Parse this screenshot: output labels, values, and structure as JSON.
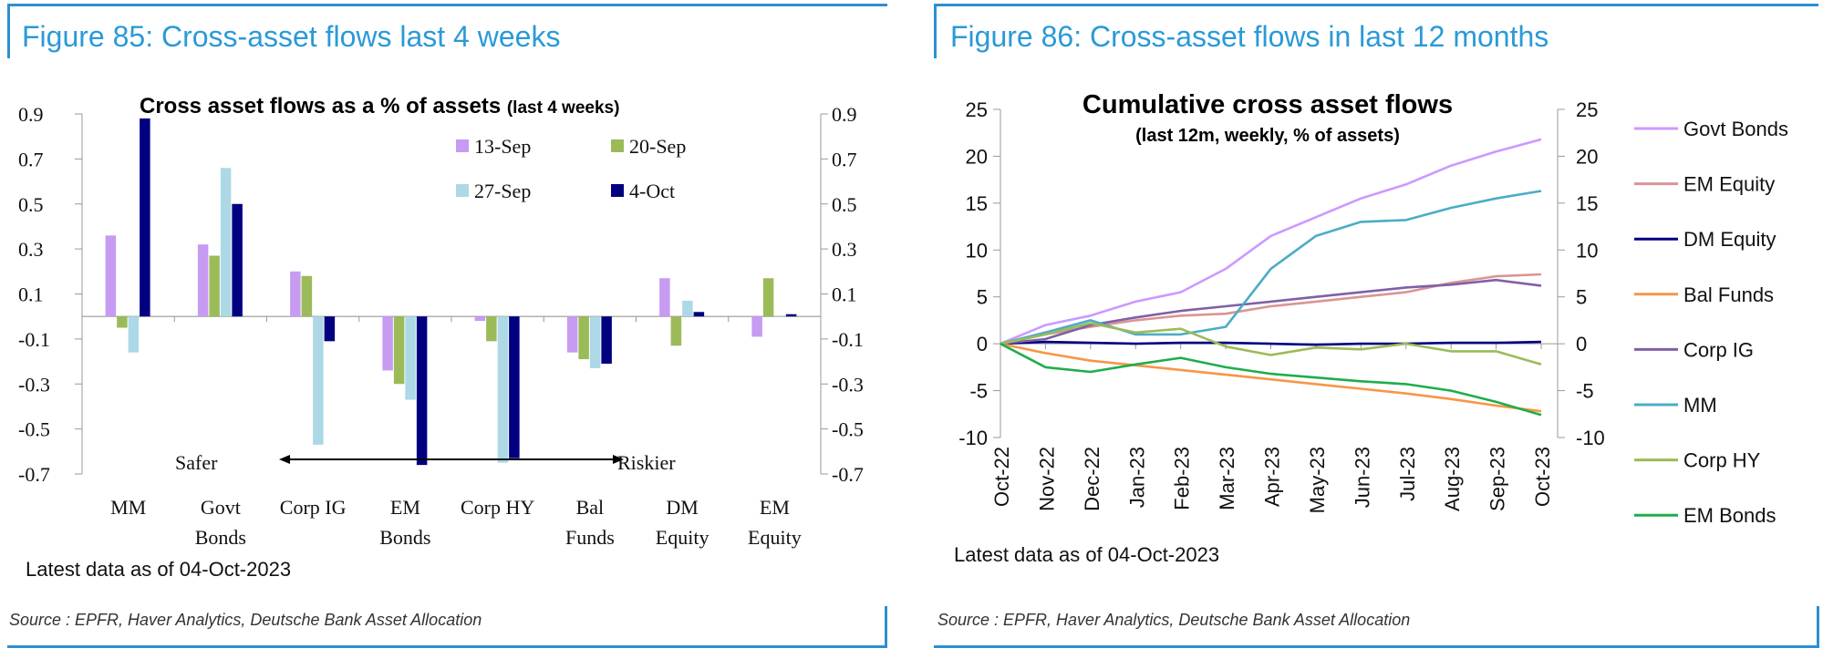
{
  "figures": [
    {
      "title": "Figure 85: Cross-asset flows last 4 weeks",
      "source": "Source : EPFR, Haver Analytics, Deutsche Bank Asset Allocation",
      "latest": "Latest data as of 04-Oct-2023",
      "safer_label": "Safer",
      "riskier_label": "Riskier"
    },
    {
      "title": "Figure 86: Cross-asset flows in last 12 months",
      "source": "Source : EPFR, Haver Analytics, Deutsche Bank Asset Allocation",
      "latest": "Latest data as of 04-Oct-2023"
    }
  ],
  "chart_data": [
    {
      "type": "bar",
      "title": "Cross asset flows as a % of assets",
      "title_suffix": "(last 4 weeks)",
      "categories": [
        [
          "MM"
        ],
        [
          "Govt",
          "Bonds"
        ],
        [
          "Corp IG"
        ],
        [
          "EM",
          "Bonds"
        ],
        [
          "Corp HY"
        ],
        [
          "Bal",
          "Funds"
        ],
        [
          "DM",
          "Equity"
        ],
        [
          "EM",
          "Equity"
        ]
      ],
      "series": [
        {
          "name": "13-Sep",
          "color": "#c79bf2",
          "values": [
            0.36,
            0.32,
            0.2,
            -0.24,
            -0.02,
            -0.16,
            0.17,
            -0.09
          ]
        },
        {
          "name": "20-Sep",
          "color": "#9bbb59",
          "values": [
            -0.05,
            0.27,
            0.18,
            -0.3,
            -0.11,
            -0.19,
            -0.13,
            0.17
          ]
        },
        {
          "name": "27-Sep",
          "color": "#add8e6",
          "values": [
            -0.16,
            0.66,
            -0.57,
            -0.37,
            -0.65,
            -0.23,
            0.07,
            0.0
          ]
        },
        {
          "name": "4-Oct",
          "color": "#000080",
          "values": [
            0.88,
            0.5,
            -0.11,
            -0.66,
            -0.63,
            -0.21,
            0.02,
            0.01
          ]
        }
      ],
      "yticks": [
        "0.9",
        "0.7",
        "0.5",
        "0.3",
        "0.1",
        "-0.1",
        "-0.3",
        "-0.5",
        "-0.7"
      ],
      "ylim": [
        -0.7,
        0.9
      ]
    },
    {
      "type": "line",
      "title": "Cumulative cross asset flows",
      "subtitle": "(last 12m, weekly, % of assets)",
      "x_labels": [
        "Oct-22",
        "Nov-22",
        "Dec-22",
        "Jan-23",
        "Feb-23",
        "Mar-23",
        "Apr-23",
        "May-23",
        "Jun-23",
        "Jul-23",
        "Aug-23",
        "Sep-23",
        "Oct-23"
      ],
      "yticks": [
        "25",
        "20",
        "15",
        "10",
        "5",
        "0",
        "-5",
        "-10"
      ],
      "ylim": [
        -10,
        25
      ],
      "series": [
        {
          "name": "Govt Bonds",
          "color": "#cc99ff",
          "values": [
            0,
            2.0,
            3.0,
            4.5,
            5.5,
            8.0,
            11.5,
            13.5,
            15.5,
            17.0,
            19.0,
            20.5,
            21.8
          ]
        },
        {
          "name": "EM Equity",
          "color": "#d99594",
          "values": [
            0,
            1.0,
            1.8,
            2.5,
            3.0,
            3.2,
            4.0,
            4.5,
            5.0,
            5.5,
            6.5,
            7.2,
            7.4
          ]
        },
        {
          "name": "DM Equity",
          "color": "#000080",
          "values": [
            0,
            0.2,
            0.1,
            0.0,
            0.1,
            0.1,
            0.0,
            -0.1,
            0.0,
            0.0,
            0.1,
            0.1,
            0.2
          ]
        },
        {
          "name": "Bal Funds",
          "color": "#f79646",
          "values": [
            0,
            -1.0,
            -1.8,
            -2.3,
            -2.8,
            -3.3,
            -3.8,
            -4.3,
            -4.8,
            -5.3,
            -5.9,
            -6.6,
            -7.2
          ]
        },
        {
          "name": "Corp IG",
          "color": "#7f60a8",
          "values": [
            0,
            0.5,
            2.0,
            2.8,
            3.5,
            4.0,
            4.5,
            5.0,
            5.5,
            6.0,
            6.3,
            6.8,
            6.2
          ]
        },
        {
          "name": "MM",
          "color": "#4bacc6",
          "values": [
            0,
            1.2,
            2.5,
            1.0,
            1.0,
            1.8,
            8.0,
            11.5,
            13.0,
            13.2,
            14.5,
            15.5,
            16.3
          ]
        },
        {
          "name": "Corp HY",
          "color": "#9bbb59",
          "values": [
            0,
            1.0,
            2.2,
            1.2,
            1.6,
            -0.3,
            -1.2,
            -0.4,
            -0.6,
            0.0,
            -0.8,
            -0.8,
            -2.2
          ]
        },
        {
          "name": "EM Bonds",
          "color": "#1fad4c",
          "values": [
            0,
            -2.5,
            -3.0,
            -2.2,
            -1.5,
            -2.5,
            -3.2,
            -3.6,
            -4.0,
            -4.3,
            -5.0,
            -6.2,
            -7.6
          ]
        }
      ]
    }
  ]
}
